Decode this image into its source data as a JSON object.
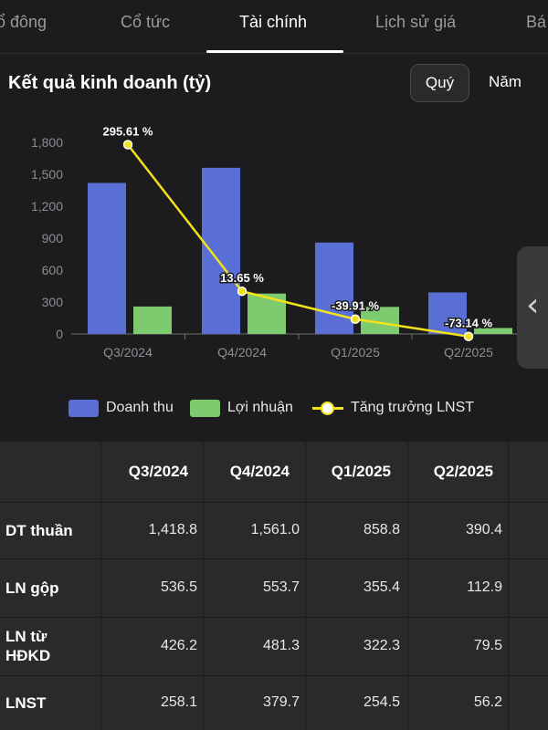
{
  "tabs": [
    {
      "label": "ổ đông"
    },
    {
      "label": "Cổ tức"
    },
    {
      "label": "Tài chính"
    },
    {
      "label": "Lịch sử giá"
    },
    {
      "label": "Bá"
    }
  ],
  "section": {
    "title": "Kết quả kinh doanh (tỷ)",
    "period_quarter": "Quý",
    "period_year": "Năm"
  },
  "chart_data": {
    "type": "bar",
    "categories": [
      "Q3/2024",
      "Q4/2024",
      "Q1/2025",
      "Q2/2025"
    ],
    "series": [
      {
        "name": "Doanh thu",
        "values": [
          1418.8,
          1561.0,
          858.8,
          390.4
        ],
        "color": "#5a6fd6"
      },
      {
        "name": "Lợi nhuận",
        "values": [
          258.1,
          379.7,
          254.5,
          56.2
        ],
        "color": "#7ecb6f"
      }
    ],
    "line_series": {
      "name": "Tăng trưởng LNST",
      "values": [
        295.61,
        13.65,
        -39.91,
        -73.14
      ],
      "labels": [
        "295.61 %",
        "13.65 %",
        "-39.91 %",
        "-73.14 %"
      ],
      "color": "#f2e218"
    },
    "y_ticks": [
      "0",
      "300",
      "600",
      "900",
      "1,200",
      "1,500",
      "1,800"
    ],
    "ylim": [
      0,
      1800
    ],
    "legend_position": "bottom"
  },
  "legend": {
    "revenue": "Doanh thu",
    "profit": "Lợi nhuận",
    "growth": "Tăng trưởng LNST"
  },
  "table": {
    "headers": [
      "Q3/2024",
      "Q4/2024",
      "Q1/2025",
      "Q2/2025"
    ],
    "rows": [
      {
        "label": "DT thuần",
        "values": [
          "1,418.8",
          "1,561.0",
          "858.8",
          "390.4"
        ]
      },
      {
        "label": "LN gộp",
        "values": [
          "536.5",
          "553.7",
          "355.4",
          "112.9"
        ]
      },
      {
        "label": "LN từ HĐKD",
        "values": [
          "426.2",
          "481.3",
          "322.3",
          "79.5"
        ]
      },
      {
        "label": "LNST",
        "values": [
          "258.1",
          "379.7",
          "254.5",
          "56.2"
        ]
      }
    ]
  },
  "side_handle_icon": "chevron-left-icon"
}
